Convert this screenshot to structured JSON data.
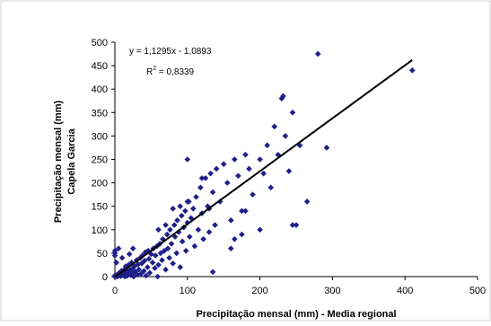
{
  "chart_data": {
    "type": "scatter",
    "title": "",
    "xlabel": "Precipitação mensal (mm) - Media regional",
    "ylabel": [
      "Precipitação mensal (mm)",
      "Capela Garcia"
    ],
    "xlim": [
      0,
      500
    ],
    "ylim": [
      0,
      500
    ],
    "xticks": [
      0,
      100,
      200,
      300,
      400,
      500
    ],
    "yticks": [
      0,
      50,
      100,
      150,
      200,
      250,
      300,
      350,
      400,
      450,
      500
    ],
    "grid": false,
    "legend": "none",
    "marker_color": "#1f1f8a",
    "trendline": {
      "equation": "y = 1,1295x - 1,0893",
      "r2_label": "R",
      "r2_exp": "2",
      "r2_value": " = 0,8339",
      "slope": 1.1295,
      "intercept": -1.0893,
      "x_range": [
        1,
        410
      ],
      "color": "#000000"
    },
    "series": [
      {
        "points": [
          [
            0,
            0
          ],
          [
            0,
            2
          ],
          [
            1,
            1
          ],
          [
            2,
            3
          ],
          [
            3,
            0
          ],
          [
            4,
            5
          ],
          [
            5,
            2
          ],
          [
            6,
            8
          ],
          [
            7,
            4
          ],
          [
            8,
            1
          ],
          [
            9,
            12
          ],
          [
            10,
            6
          ],
          [
            11,
            3
          ],
          [
            12,
            9
          ],
          [
            13,
            15
          ],
          [
            14,
            0
          ],
          [
            15,
            7
          ],
          [
            16,
            20
          ],
          [
            17,
            2
          ],
          [
            18,
            11
          ],
          [
            19,
            25
          ],
          [
            20,
            5
          ],
          [
            21,
            14
          ],
          [
            22,
            3
          ],
          [
            23,
            30
          ],
          [
            24,
            8
          ],
          [
            25,
            18
          ],
          [
            26,
            0
          ],
          [
            27,
            22
          ],
          [
            28,
            10
          ],
          [
            30,
            35
          ],
          [
            31,
            4
          ],
          [
            32,
            26
          ],
          [
            33,
            15
          ],
          [
            35,
            40
          ],
          [
            36,
            6
          ],
          [
            37,
            28
          ],
          [
            38,
            45
          ],
          [
            40,
            12
          ],
          [
            41,
            34
          ],
          [
            42,
            52
          ],
          [
            43,
            2
          ],
          [
            45,
            20
          ],
          [
            46,
            55
          ],
          [
            47,
            38
          ],
          [
            48,
            8
          ],
          [
            50,
            48
          ],
          [
            52,
            30
          ],
          [
            53,
            60
          ],
          [
            55,
            18
          ],
          [
            56,
            45
          ],
          [
            58,
            65
          ],
          [
            59,
            0
          ],
          [
            60,
            25
          ],
          [
            62,
            70
          ],
          [
            63,
            50
          ],
          [
            65,
            35
          ],
          [
            66,
            80
          ],
          [
            68,
            55
          ],
          [
            70,
            15
          ],
          [
            72,
            90
          ],
          [
            73,
            60
          ],
          [
            75,
            40
          ],
          [
            76,
            100
          ],
          [
            78,
            70
          ],
          [
            80,
            28
          ],
          [
            82,
            110
          ],
          [
            83,
            85
          ],
          [
            85,
            50
          ],
          [
            86,
            120
          ],
          [
            88,
            95
          ],
          [
            90,
            20
          ],
          [
            92,
            130
          ],
          [
            93,
            75
          ],
          [
            95,
            105
          ],
          [
            97,
            140
          ],
          [
            98,
            55
          ],
          [
            100,
            115
          ],
          [
            102,
            160
          ],
          [
            103,
            85
          ],
          [
            105,
            125
          ],
          [
            108,
            145
          ],
          [
            110,
            65
          ],
          [
            112,
            170
          ],
          [
            115,
            100
          ],
          [
            118,
            190
          ],
          [
            120,
            135
          ],
          [
            122,
            80
          ],
          [
            125,
            210
          ],
          [
            128,
            150
          ],
          [
            130,
            95
          ],
          [
            132,
            220
          ],
          [
            135,
            180
          ],
          [
            138,
            110
          ],
          [
            140,
            230
          ],
          [
            145,
            160
          ],
          [
            150,
            240
          ],
          [
            155,
            200
          ],
          [
            160,
            120
          ],
          [
            165,
            250
          ],
          [
            170,
            215
          ],
          [
            175,
            140
          ],
          [
            180,
            260
          ],
          [
            185,
            230
          ],
          [
            190,
            175
          ],
          [
            200,
            250
          ],
          [
            205,
            220
          ],
          [
            210,
            280
          ],
          [
            215,
            190
          ],
          [
            220,
            320
          ],
          [
            225,
            260
          ],
          [
            230,
            380
          ],
          [
            232,
            385
          ],
          [
            235,
            300
          ],
          [
            240,
            225
          ],
          [
            245,
            350
          ],
          [
            250,
            110
          ],
          [
            255,
            280
          ],
          [
            265,
            160
          ],
          [
            280,
            475
          ],
          [
            292,
            275
          ],
          [
            410,
            440
          ],
          [
            0,
            55
          ],
          [
            0,
            50
          ],
          [
            0,
            45
          ],
          [
            2,
            30
          ],
          [
            5,
            60
          ],
          [
            10,
            40
          ],
          [
            15,
            22
          ],
          [
            20,
            48
          ],
          [
            25,
            60
          ],
          [
            60,
            100
          ],
          [
            70,
            110
          ],
          [
            80,
            145
          ],
          [
            90,
            150
          ],
          [
            100,
            160
          ],
          [
            120,
            210
          ],
          [
            130,
            145
          ],
          [
            100,
            250
          ],
          [
            135,
            10
          ],
          [
            165,
            80
          ],
          [
            175,
            90
          ],
          [
            200,
            100
          ],
          [
            245,
            110
          ],
          [
            160,
            60
          ],
          [
            180,
            140
          ]
        ]
      }
    ]
  }
}
